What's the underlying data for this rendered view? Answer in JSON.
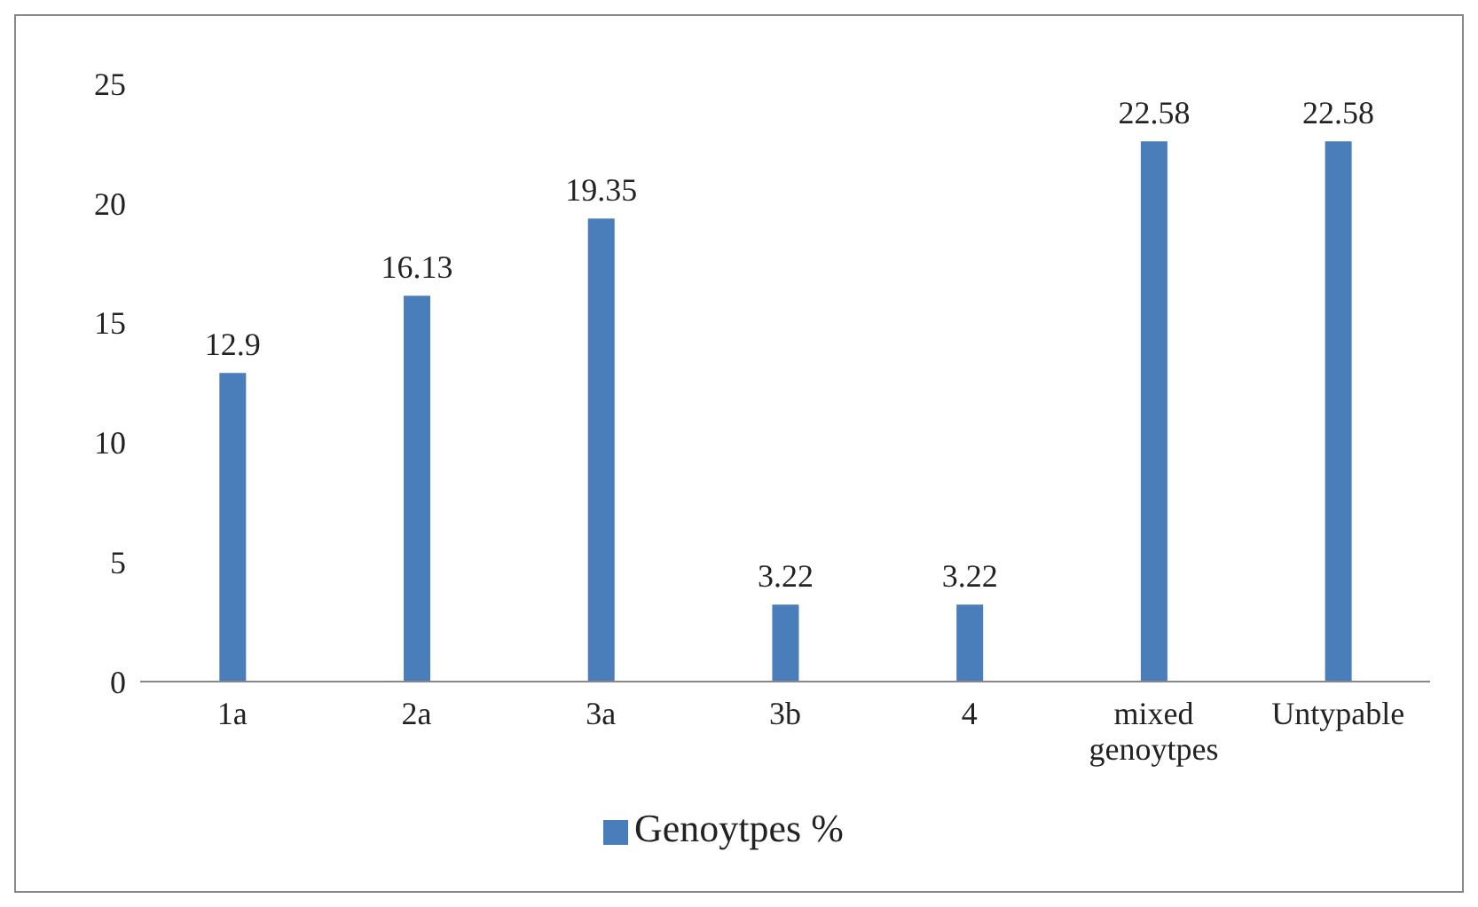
{
  "chart_data": {
    "type": "bar",
    "categories": [
      "1a",
      "2a",
      "3a",
      "3b",
      "4",
      "mixed genoytpes",
      "Untypable"
    ],
    "series": [
      {
        "name": "Genoytpes %",
        "color": "#4a7ebb",
        "values": [
          12.9,
          16.13,
          19.35,
          3.22,
          3.22,
          22.58,
          22.58
        ]
      }
    ],
    "ylim": [
      0,
      25
    ],
    "yticks": [
      0,
      5,
      10,
      15,
      20,
      25
    ],
    "data_labels": true,
    "grid": false,
    "legend": "bottom"
  }
}
